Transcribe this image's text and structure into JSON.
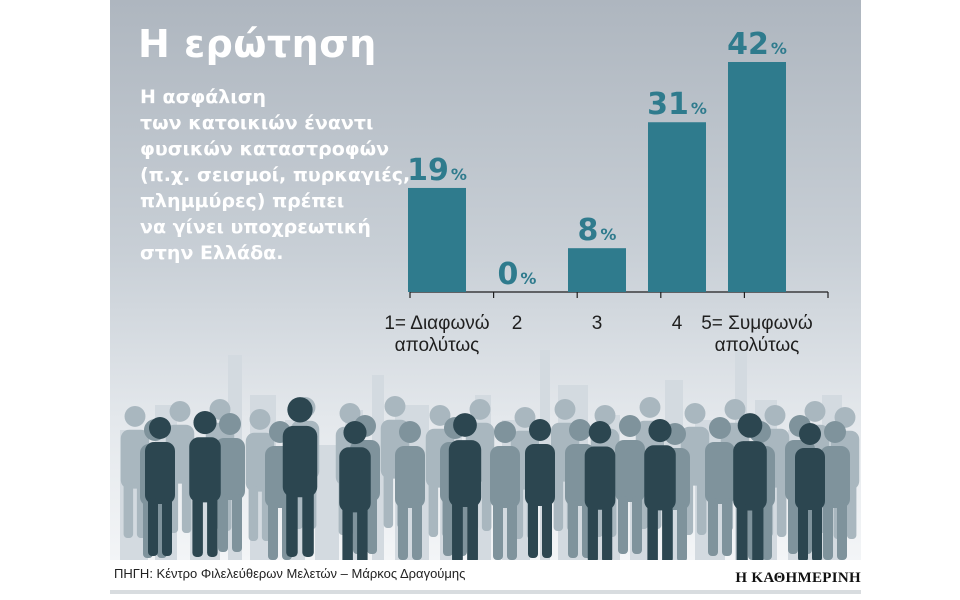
{
  "title": "Η ερώτηση",
  "question": "Η ασφάλιση\nτων κατοικιών έναντι\nφυσικών καταστροφών\n(π.χ. σεισμοί, πυρκαγιές,\nπλημμύρες) πρέπει\nνα γίνει υποχρεωτική\nστην Ελλάδα.",
  "source": "ΠΗΓΗ: Κέντρο Φιλελεύθερων Μελετών – Μάρκος Δραγούμης",
  "publisher": "Η ΚΑΘΗΜΕΡΙΝΗ",
  "colors": {
    "bar": "#2f7b8d",
    "label": "#2f7b8d",
    "axis": "#1f1f1f",
    "silhouette": "#2c4650"
  },
  "chart_data": {
    "type": "bar",
    "categories": [
      "1= Διαφωνώ\nαπολύτως",
      "2",
      "3",
      "4",
      "5= Συμφωνώ\nαπολύτως"
    ],
    "values": [
      19,
      0,
      8,
      31,
      42
    ],
    "unit": "%",
    "ylim": [
      0,
      42
    ],
    "grid": false,
    "legend": "none"
  }
}
